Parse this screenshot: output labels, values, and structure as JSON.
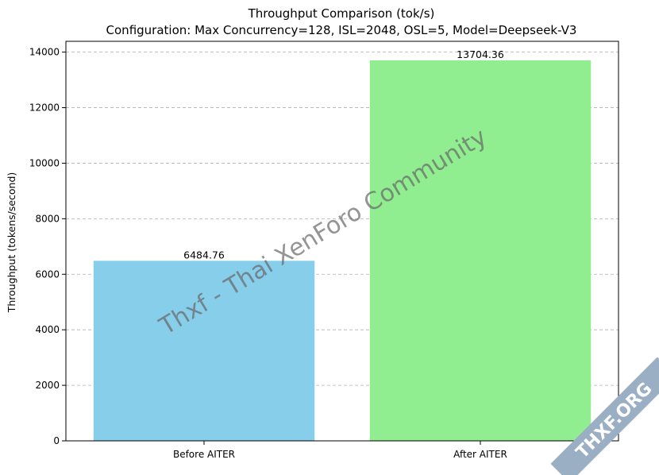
{
  "chart_data": {
    "type": "bar",
    "title": "Throughput Comparison (tok/s)",
    "subtitle": "Configuration: Max Concurrency=128, ISL=2048, OSL=5, Model=Deepseek-V3",
    "xlabel": "",
    "ylabel": "Throughput (tokens/second)",
    "categories": [
      "Before AITER",
      "After AITER"
    ],
    "values": [
      6484.76,
      13704.36
    ],
    "value_labels": [
      "6484.76",
      "13704.36"
    ],
    "colors": [
      "#87ceeb",
      "#90ee90"
    ],
    "ylim": [
      0,
      14390
    ],
    "yticks": [
      0,
      2000,
      4000,
      6000,
      8000,
      10000,
      12000,
      14000
    ],
    "ytick_labels": [
      "0",
      "2000",
      "4000",
      "6000",
      "8000",
      "10000",
      "12000",
      "14000"
    ],
    "grid": "horizontal dashed",
    "legend": "none"
  },
  "watermark": {
    "text": "Thxf - Thai XenForo Community",
    "badge_text": "THXF.ORG",
    "badge_color": "#9aaec4",
    "badge_accent": "#f5a623"
  }
}
